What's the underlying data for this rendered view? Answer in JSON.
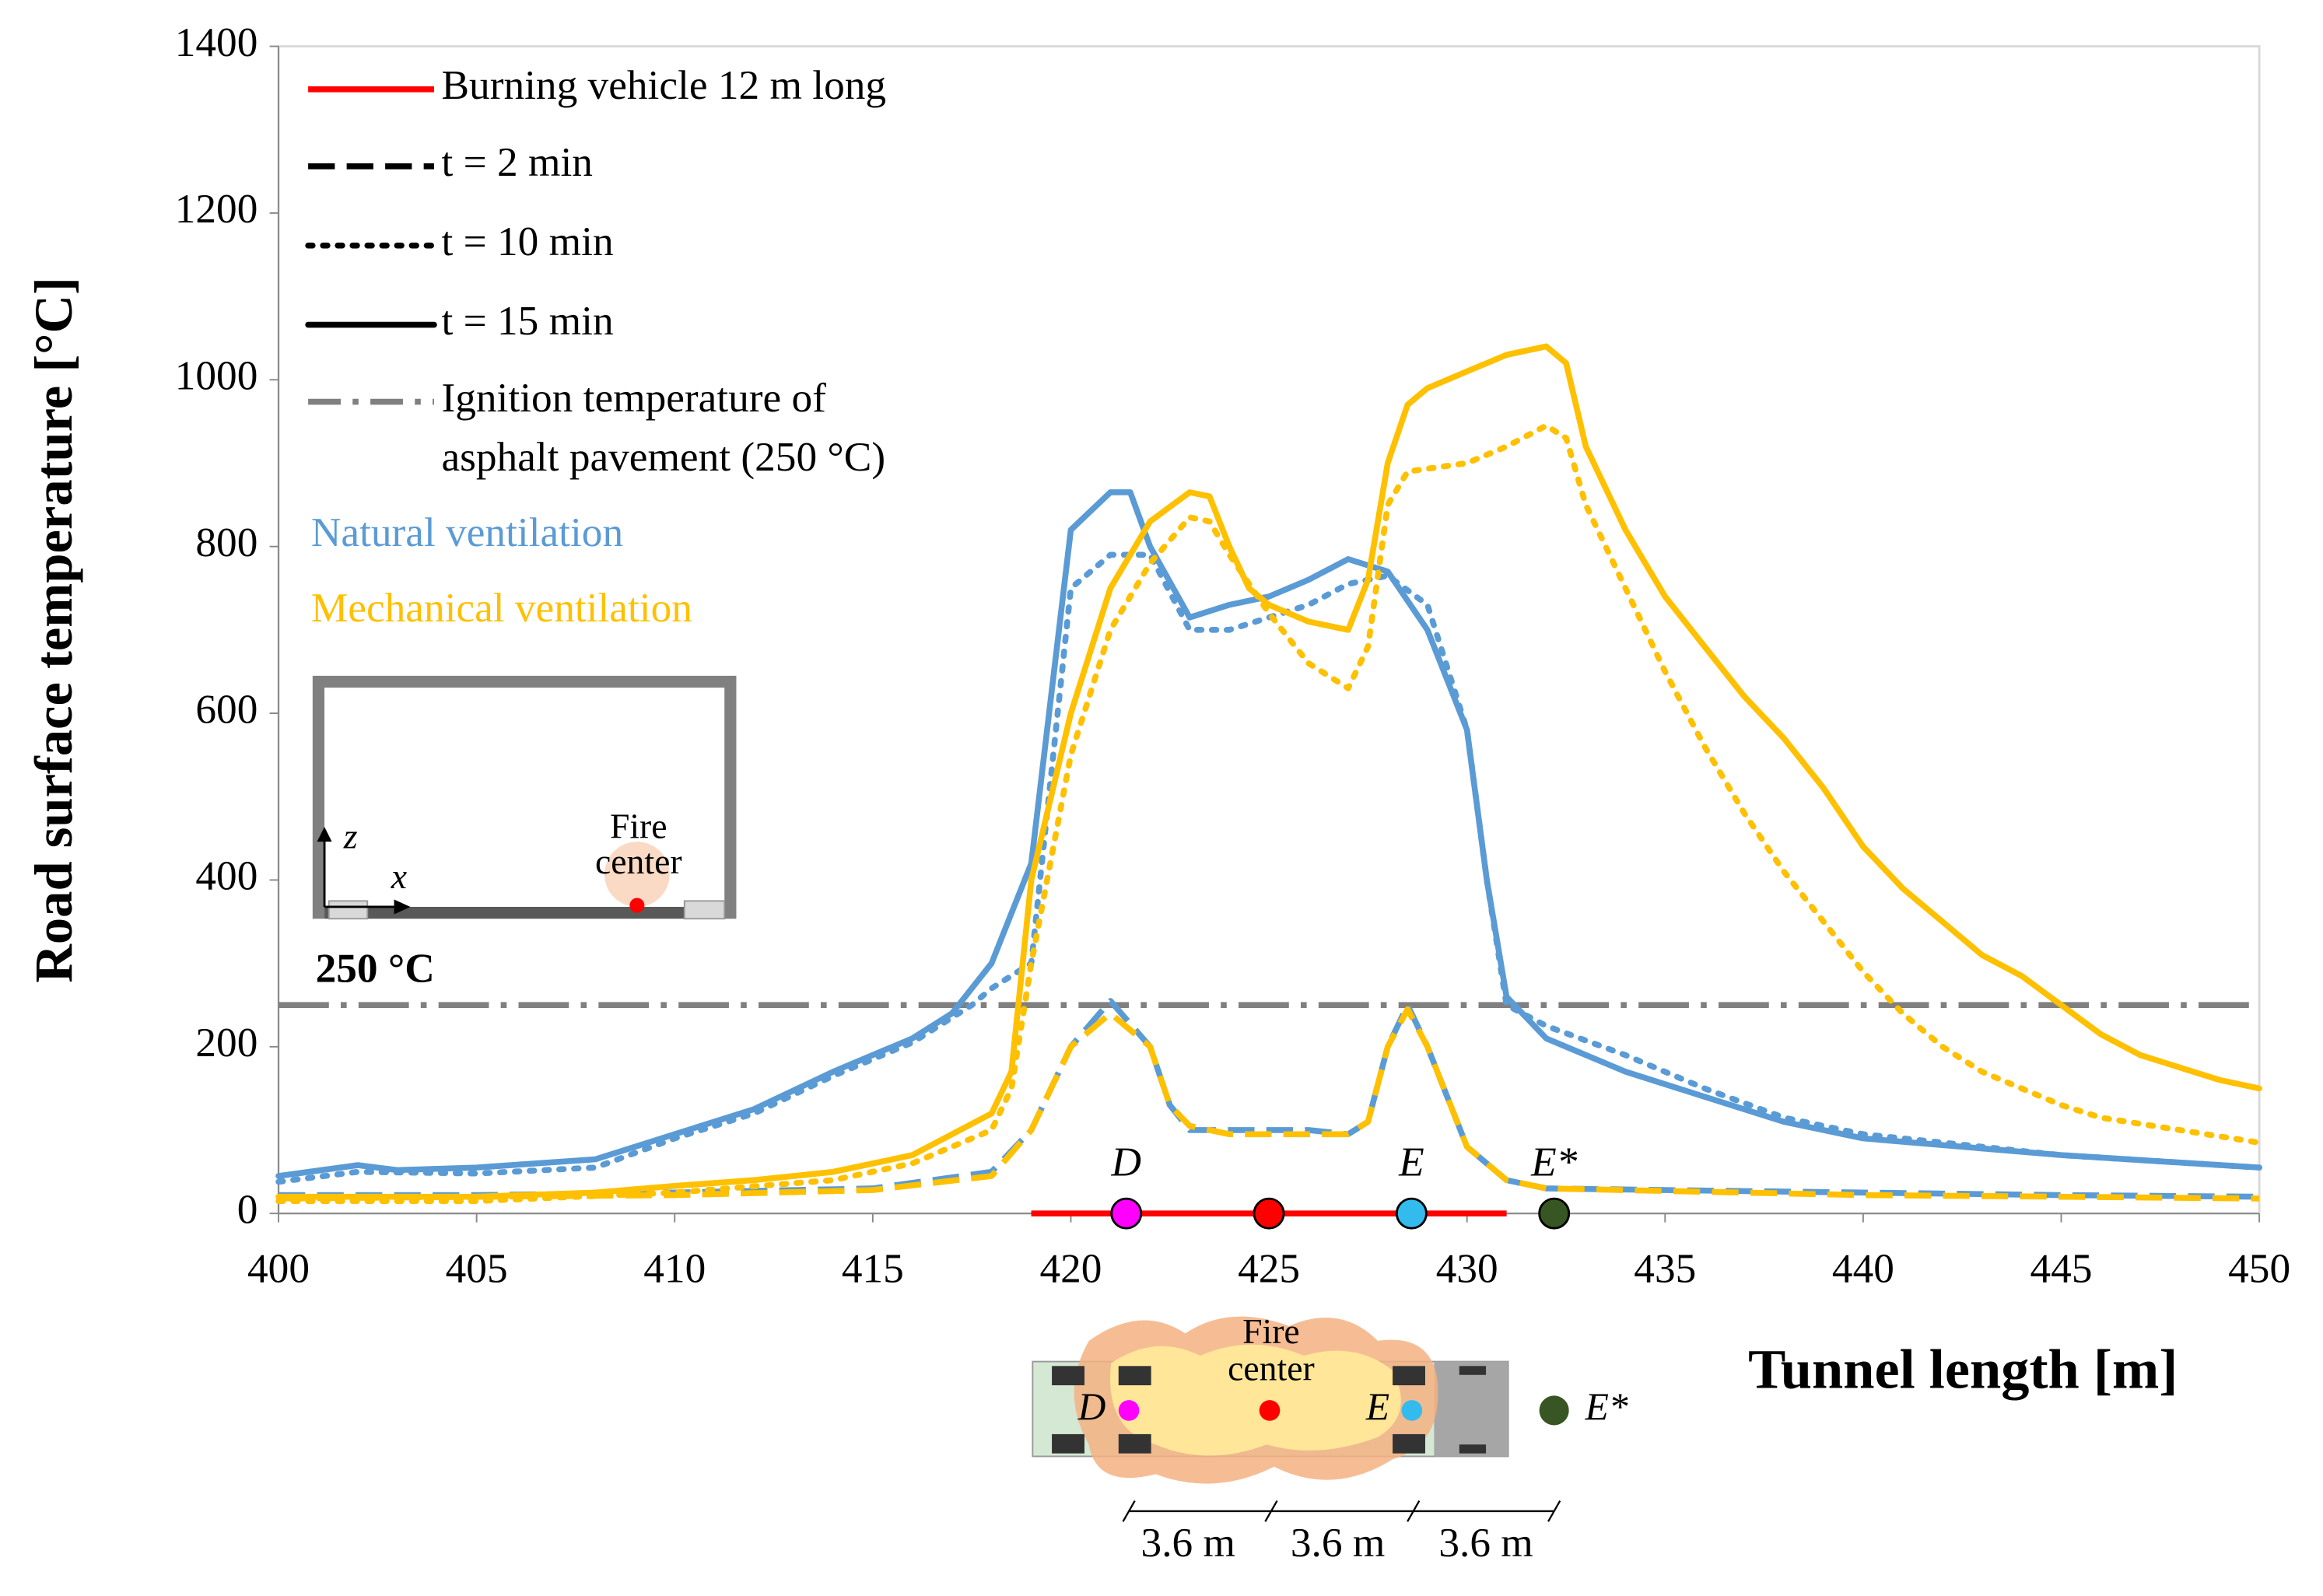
{
  "chart_data": {
    "type": "line",
    "xlabel": "Tunnel length [m]",
    "ylabel": "Road surface temperature [°C]",
    "xlim": [
      400,
      450
    ],
    "ylim": [
      0,
      1400
    ],
    "xticks": [
      400,
      405,
      410,
      415,
      420,
      425,
      430,
      435,
      440,
      445,
      450
    ],
    "yticks": [
      0,
      200,
      400,
      600,
      800,
      1000,
      1200,
      1400
    ],
    "times": [
      {
        "label": "t = 2 min",
        "dash": "dashed"
      },
      {
        "label": "t = 10 min",
        "dash": "dotted"
      },
      {
        "label": "t = 15 min",
        "dash": "solid"
      }
    ],
    "ventilations": [
      {
        "name": "Natural ventilation",
        "color": "#5b9bd5",
        "series": [
          {
            "x": [
              400,
              405,
              410,
              415,
              418,
              419,
              420,
              421,
              422,
              422.5,
              423,
              424,
              425,
              426,
              427,
              427.5,
              428,
              428.5,
              429,
              430,
              431,
              432,
              435,
              440,
              445,
              450
            ],
            "values": [
              22,
              22,
              25,
              30,
              50,
              100,
              200,
              255,
              200,
              130,
              100,
              100,
              100,
              100,
              95,
              110,
              200,
              250,
              200,
              80,
              40,
              30,
              28,
              25,
              22,
              20
            ]
          },
          {
            "x": [
              400,
              402,
              405,
              408,
              410,
              412,
              414,
              416,
              417.5,
              418,
              419,
              420,
              421,
              422,
              423,
              424,
              425,
              426,
              427,
              428,
              429,
              430,
              430.5,
              431,
              432,
              434,
              436,
              438,
              440,
              445,
              450
            ],
            "values": [
              38,
              50,
              48,
              55,
              90,
              120,
              165,
              205,
              250,
              270,
              300,
              750,
              790,
              790,
              700,
              700,
              715,
              730,
              755,
              765,
              730,
              580,
              400,
              250,
              225,
              190,
              150,
              115,
              95,
              70,
              55
            ]
          },
          {
            "x": [
              400,
              402,
              403,
              405,
              408,
              410,
              412,
              414,
              416,
              417,
              418,
              419,
              420,
              421,
              421.5,
              422,
              423,
              424,
              425,
              426,
              427,
              428,
              429,
              430,
              430.5,
              431,
              432,
              434,
              436,
              438,
              440,
              445,
              450
            ],
            "values": [
              45,
              58,
              52,
              55,
              65,
              95,
              125,
              170,
              210,
              240,
              300,
              420,
              820,
              865,
              865,
              800,
              715,
              730,
              740,
              760,
              785,
              770,
              700,
              580,
              400,
              260,
              210,
              170,
              140,
              110,
              90,
              70,
              55
            ]
          }
        ]
      },
      {
        "name": "Mechanical ventilation",
        "color": "#ffc000",
        "series": [
          {
            "x": [
              400,
              410,
              415,
              418,
              419,
              420,
              421,
              422,
              422.5,
              423,
              424,
              425,
              426,
              427,
              427.5,
              428,
              428.5,
              429,
              430,
              431,
              432,
              435,
              440,
              445,
              450
            ],
            "values": [
              18,
              22,
              28,
              45,
              100,
              200,
              240,
              200,
              130,
              105,
              95,
              95,
              95,
              95,
              110,
              200,
              245,
              200,
              80,
              40,
              30,
              27,
              22,
              20,
              18
            ]
          },
          {
            "x": [
              400,
              405,
              410,
              414,
              416,
              418,
              418.5,
              419,
              420,
              421,
              422,
              423,
              423.5,
              424,
              425,
              426,
              427,
              427.5,
              428,
              428.5,
              430,
              431,
              432,
              432.5,
              433,
              434,
              435,
              436,
              437,
              438,
              439,
              440,
              441,
              442,
              443,
              444,
              445,
              446,
              448,
              450
            ],
            "values": [
              15,
              15,
              25,
              40,
              60,
              100,
              150,
              300,
              550,
              700,
              780,
              835,
              830,
              790,
              720,
              660,
              630,
              680,
              850,
              890,
              900,
              920,
              945,
              930,
              850,
              750,
              650,
              560,
              480,
              410,
              350,
              290,
              240,
              200,
              170,
              150,
              130,
              115,
              100,
              85
            ]
          },
          {
            "x": [
              400,
              405,
              408,
              410,
              412,
              414,
              416,
              418,
              418.5,
              419,
              420,
              421,
              422,
              423,
              423.5,
              424,
              424.5,
              425,
              426,
              427,
              427.5,
              428,
              428.5,
              429,
              430,
              431,
              432,
              432.5,
              433,
              434,
              435,
              436,
              437,
              438,
              439,
              440,
              441,
              442,
              443,
              444,
              445,
              446,
              447,
              448,
              449,
              450
            ],
            "values": [
              20,
              20,
              25,
              33,
              40,
              50,
              70,
              120,
              170,
              400,
              600,
              750,
              830,
              865,
              860,
              800,
              750,
              730,
              710,
              700,
              760,
              900,
              970,
              990,
              1010,
              1030,
              1040,
              1020,
              920,
              820,
              740,
              680,
              620,
              570,
              510,
              440,
              390,
              350,
              310,
              285,
              250,
              215,
              190,
              175,
              160,
              150
            ]
          }
        ]
      }
    ],
    "vehicle": {
      "label": "Burning vehicle 12 m long",
      "color": "#ff0000",
      "x": [
        419,
        431
      ]
    },
    "ignition": {
      "value": 250,
      "color": "#808080",
      "label": [
        "Ignition temperature of",
        "asphalt pavement (250 °C)"
      ],
      "annotation": "250 °C"
    },
    "points": [
      {
        "label": "D",
        "x": 421.4,
        "color": "#ff00ff"
      },
      {
        "label": null,
        "x": 425,
        "color": "#ff0000"
      },
      {
        "label": "E",
        "x": 428.6,
        "color": "#33bbee"
      },
      {
        "label": "E*",
        "x": 432.2,
        "color": "#375623"
      }
    ],
    "insets": {
      "cross_section": {
        "z": "z",
        "x": "x",
        "fire": [
          "Fire",
          "center"
        ]
      },
      "plan": {
        "fire": [
          "Fire",
          "center"
        ],
        "d": "D",
        "e": "E",
        "estar": "E*",
        "spacing": [
          "3.6 m",
          "3.6 m",
          "3.6 m"
        ]
      }
    }
  }
}
